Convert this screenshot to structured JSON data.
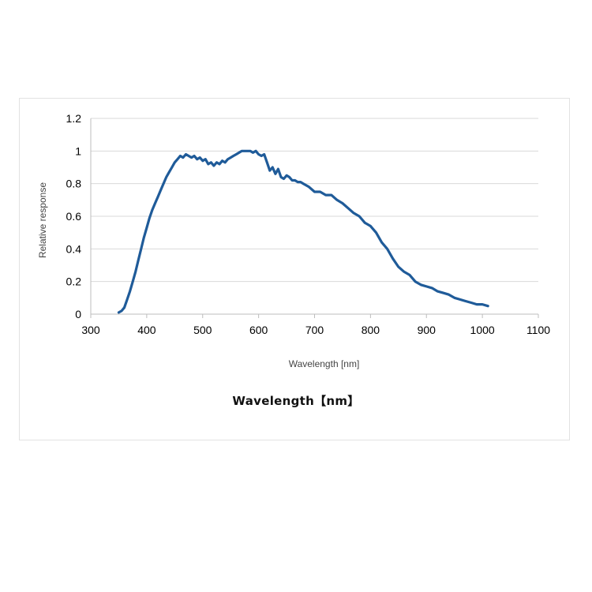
{
  "chart_data": {
    "type": "line",
    "title": "",
    "xlabel": "Wavelength [nm]",
    "ylabel": "Relative response",
    "xlim": [
      300,
      1100
    ],
    "ylim": [
      0,
      1.2
    ],
    "xticks": [
      300,
      400,
      500,
      600,
      700,
      800,
      900,
      1000,
      1100
    ],
    "yticks": [
      0,
      0.2,
      0.4,
      0.6,
      0.8,
      1,
      1.2
    ],
    "grid": "horizontal",
    "legend": "none",
    "series": [
      {
        "color": "#1f5b99",
        "x": [
          350,
          355,
          360,
          365,
          370,
          375,
          380,
          385,
          390,
          395,
          400,
          405,
          410,
          415,
          420,
          425,
          430,
          435,
          440,
          445,
          450,
          455,
          460,
          465,
          470,
          475,
          480,
          485,
          490,
          495,
          500,
          505,
          510,
          515,
          520,
          525,
          530,
          535,
          540,
          545,
          550,
          555,
          560,
          565,
          570,
          575,
          580,
          585,
          590,
          595,
          600,
          605,
          610,
          615,
          620,
          625,
          630,
          635,
          640,
          645,
          650,
          655,
          660,
          665,
          670,
          675,
          680,
          690,
          700,
          710,
          720,
          730,
          740,
          750,
          760,
          770,
          780,
          790,
          800,
          810,
          820,
          830,
          840,
          850,
          860,
          870,
          880,
          890,
          900,
          910,
          920,
          930,
          940,
          950,
          960,
          970,
          980,
          990,
          1000,
          1010
        ],
        "y": [
          0.01,
          0.02,
          0.04,
          0.09,
          0.14,
          0.2,
          0.26,
          0.33,
          0.4,
          0.47,
          0.53,
          0.59,
          0.64,
          0.68,
          0.72,
          0.76,
          0.8,
          0.84,
          0.87,
          0.9,
          0.93,
          0.95,
          0.97,
          0.96,
          0.98,
          0.97,
          0.96,
          0.97,
          0.95,
          0.96,
          0.94,
          0.95,
          0.92,
          0.93,
          0.91,
          0.93,
          0.92,
          0.94,
          0.93,
          0.95,
          0.96,
          0.97,
          0.98,
          0.99,
          1.0,
          1.0,
          1.0,
          1.0,
          0.99,
          1.0,
          0.98,
          0.97,
          0.98,
          0.93,
          0.88,
          0.9,
          0.86,
          0.89,
          0.84,
          0.83,
          0.85,
          0.84,
          0.82,
          0.82,
          0.81,
          0.81,
          0.8,
          0.78,
          0.75,
          0.75,
          0.73,
          0.73,
          0.7,
          0.68,
          0.65,
          0.62,
          0.6,
          0.56,
          0.54,
          0.5,
          0.44,
          0.4,
          0.34,
          0.29,
          0.26,
          0.24,
          0.2,
          0.18,
          0.17,
          0.16,
          0.14,
          0.13,
          0.12,
          0.1,
          0.09,
          0.08,
          0.07,
          0.06,
          0.06,
          0.05
        ]
      }
    ]
  },
  "caption": "Wavelength【nm】"
}
